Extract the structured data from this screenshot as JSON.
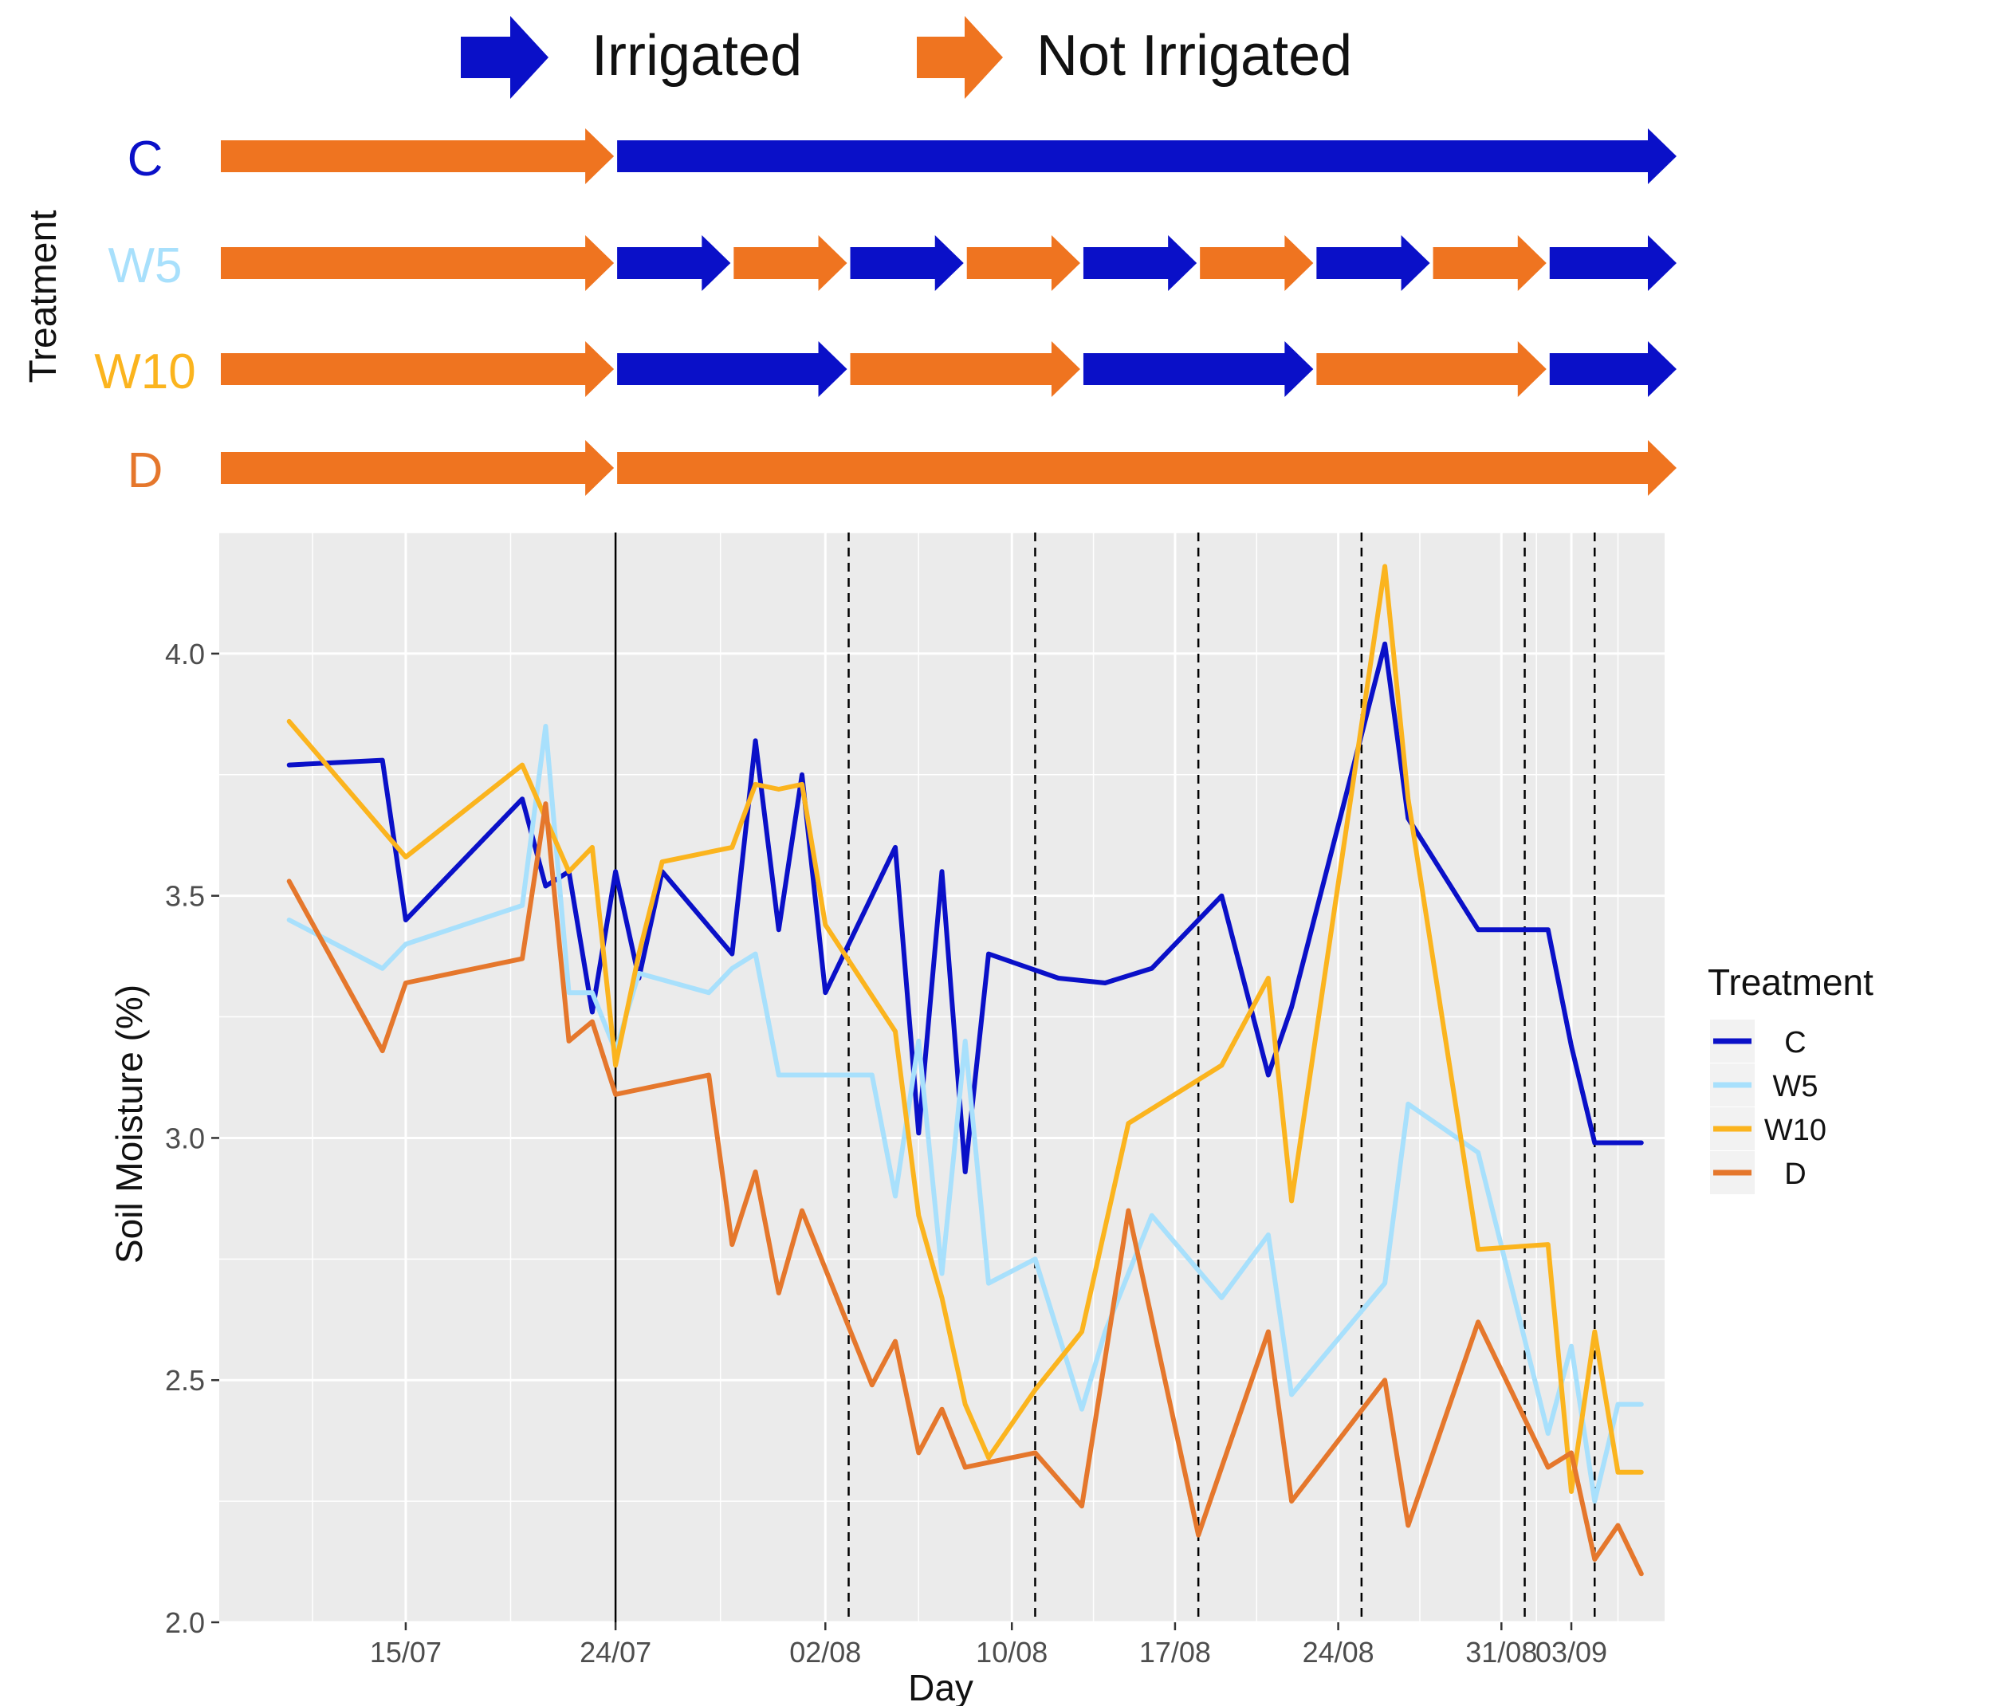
{
  "legend_top": {
    "irrigated_label": "Irrigated",
    "not_irrigated_label": "Not Irrigated"
  },
  "colors": {
    "irrigated": "#0a10c8",
    "not_irrigated": "#ef7420",
    "C": "#0a10c8",
    "W5": "#a8e0fc",
    "W10": "#fbb41e",
    "D": "#e5772c",
    "panel": "#ebebeb",
    "grid": "#ffffff"
  },
  "schedule": {
    "ylabel": "Treatment",
    "rows": [
      {
        "name": "C",
        "segments": [
          {
            "start": "2024-07-07",
            "end": "2024-07-24",
            "irrigated": false
          },
          {
            "start": "2024-07-24",
            "end": "2024-09-06",
            "irrigated": true
          }
        ]
      },
      {
        "name": "W5",
        "segments": [
          {
            "start": "2024-07-07",
            "end": "2024-07-24",
            "irrigated": false
          },
          {
            "start": "2024-07-24",
            "end": "2024-07-29",
            "irrigated": true
          },
          {
            "start": "2024-07-29",
            "end": "2024-08-03",
            "irrigated": false
          },
          {
            "start": "2024-08-03",
            "end": "2024-08-08",
            "irrigated": true
          },
          {
            "start": "2024-08-08",
            "end": "2024-08-13",
            "irrigated": false
          },
          {
            "start": "2024-08-13",
            "end": "2024-08-18",
            "irrigated": true
          },
          {
            "start": "2024-08-18",
            "end": "2024-08-23",
            "irrigated": false
          },
          {
            "start": "2024-08-23",
            "end": "2024-08-28",
            "irrigated": true
          },
          {
            "start": "2024-08-28",
            "end": "2024-09-02",
            "irrigated": false
          },
          {
            "start": "2024-09-02",
            "end": "2024-09-06",
            "irrigated": true
          }
        ]
      },
      {
        "name": "W10",
        "segments": [
          {
            "start": "2024-07-07",
            "end": "2024-07-24",
            "irrigated": false
          },
          {
            "start": "2024-07-24",
            "end": "2024-08-03",
            "irrigated": true
          },
          {
            "start": "2024-08-03",
            "end": "2024-08-13",
            "irrigated": false
          },
          {
            "start": "2024-08-13",
            "end": "2024-08-23",
            "irrigated": true
          },
          {
            "start": "2024-08-23",
            "end": "2024-09-02",
            "irrigated": false
          },
          {
            "start": "2024-09-02",
            "end": "2024-09-06",
            "irrigated": true
          }
        ]
      },
      {
        "name": "D",
        "segments": [
          {
            "start": "2024-07-07",
            "end": "2024-07-24",
            "irrigated": false
          },
          {
            "start": "2024-07-24",
            "end": "2024-09-06",
            "irrigated": false
          }
        ]
      }
    ]
  },
  "chart_data": {
    "type": "line",
    "xlabel": "Day",
    "ylabel": "Soil Moisture (%)",
    "xlim": [
      "2024-07-07",
      "2024-09-07"
    ],
    "ylim": [
      2.0,
      4.25
    ],
    "x_ticks": [
      {
        "date": "2024-07-15",
        "label": "15/07"
      },
      {
        "date": "2024-07-24",
        "label": "24/07"
      },
      {
        "date": "2024-08-02",
        "label": "02/08"
      },
      {
        "date": "2024-08-10",
        "label": "10/08"
      },
      {
        "date": "2024-08-17",
        "label": "17/08"
      },
      {
        "date": "2024-08-24",
        "label": "24/08"
      },
      {
        "date": "2024-08-31",
        "label": "31/08"
      },
      {
        "date": "2024-09-03",
        "label": "03/09"
      }
    ],
    "y_ticks": [
      {
        "value": 2.0,
        "label": "2.0"
      },
      {
        "value": 2.5,
        "label": "2.5"
      },
      {
        "value": 3.0,
        "label": "3.0"
      },
      {
        "value": 3.5,
        "label": "3.5"
      },
      {
        "value": 4.0,
        "label": "4.0"
      }
    ],
    "grid": true,
    "solid_vline": "2024-07-24",
    "dashed_vlines": [
      "2024-08-03",
      "2024-08-11",
      "2024-08-18",
      "2024-08-25",
      "2024-09-01",
      "2024-09-04"
    ],
    "legend": {
      "title": "Treatment",
      "position": "right"
    },
    "series": [
      {
        "name": "C",
        "x": [
          "2024-07-10",
          "2024-07-14",
          "2024-07-15",
          "2024-07-20",
          "2024-07-21",
          "2024-07-22",
          "2024-07-23",
          "2024-07-24",
          "2024-07-25",
          "2024-07-26",
          "2024-07-29",
          "2024-07-30",
          "2024-07-31",
          "2024-08-01",
          "2024-08-02",
          "2024-08-05",
          "2024-08-06",
          "2024-08-07",
          "2024-08-08",
          "2024-08-09",
          "2024-08-12",
          "2024-08-14",
          "2024-08-16",
          "2024-08-19",
          "2024-08-21",
          "2024-08-22",
          "2024-08-26",
          "2024-08-27",
          "2024-08-30",
          "2024-09-02",
          "2024-09-03",
          "2024-09-04",
          "2024-09-05",
          "2024-09-06"
        ],
        "y": [
          3.77,
          3.78,
          3.45,
          3.7,
          3.52,
          3.55,
          3.26,
          3.55,
          3.33,
          3.55,
          3.38,
          3.82,
          3.43,
          3.75,
          3.3,
          3.6,
          3.01,
          3.55,
          2.93,
          3.38,
          3.33,
          3.32,
          3.35,
          3.5,
          3.13,
          3.27,
          4.02,
          3.66,
          3.43,
          3.43,
          3.19,
          2.99,
          2.99,
          2.99
        ]
      },
      {
        "name": "W5",
        "x": [
          "2024-07-10",
          "2024-07-14",
          "2024-07-15",
          "2024-07-20",
          "2024-07-21",
          "2024-07-22",
          "2024-07-23",
          "2024-07-24",
          "2024-07-25",
          "2024-07-28",
          "2024-07-29",
          "2024-07-30",
          "2024-07-31",
          "2024-08-01",
          "2024-08-04",
          "2024-08-05",
          "2024-08-06",
          "2024-08-07",
          "2024-08-08",
          "2024-08-09",
          "2024-08-11",
          "2024-08-13",
          "2024-08-14",
          "2024-08-16",
          "2024-08-19",
          "2024-08-21",
          "2024-08-22",
          "2024-08-26",
          "2024-08-27",
          "2024-08-30",
          "2024-09-02",
          "2024-09-03",
          "2024-09-04",
          "2024-09-05",
          "2024-09-06"
        ],
        "y": [
          3.45,
          3.35,
          3.4,
          3.48,
          3.85,
          3.3,
          3.3,
          3.18,
          3.34,
          3.3,
          3.35,
          3.38,
          3.13,
          3.13,
          3.13,
          2.88,
          3.2,
          2.72,
          3.2,
          2.7,
          2.75,
          2.44,
          2.6,
          2.84,
          2.67,
          2.8,
          2.47,
          2.7,
          3.07,
          2.97,
          2.39,
          2.57,
          2.25,
          2.45,
          2.45
        ]
      },
      {
        "name": "W10",
        "x": [
          "2024-07-10",
          "2024-07-15",
          "2024-07-20",
          "2024-07-22",
          "2024-07-23",
          "2024-07-24",
          "2024-07-25",
          "2024-07-26",
          "2024-07-29",
          "2024-07-30",
          "2024-07-31",
          "2024-08-01",
          "2024-08-02",
          "2024-08-05",
          "2024-08-06",
          "2024-08-07",
          "2024-08-08",
          "2024-08-09",
          "2024-08-11",
          "2024-08-13",
          "2024-08-15",
          "2024-08-19",
          "2024-08-21",
          "2024-08-22",
          "2024-08-26",
          "2024-08-27",
          "2024-08-30",
          "2024-09-02",
          "2024-09-03",
          "2024-09-04",
          "2024-09-05",
          "2024-09-06"
        ],
        "y": [
          3.86,
          3.58,
          3.77,
          3.55,
          3.6,
          3.15,
          3.38,
          3.57,
          3.6,
          3.73,
          3.72,
          3.73,
          3.44,
          3.22,
          2.84,
          2.67,
          2.45,
          2.34,
          2.48,
          2.6,
          3.03,
          3.15,
          3.33,
          2.87,
          4.18,
          3.7,
          2.77,
          2.78,
          2.27,
          2.6,
          2.31,
          2.31
        ]
      },
      {
        "name": "D",
        "x": [
          "2024-07-10",
          "2024-07-14",
          "2024-07-15",
          "2024-07-20",
          "2024-07-21",
          "2024-07-22",
          "2024-07-23",
          "2024-07-24",
          "2024-07-28",
          "2024-07-29",
          "2024-07-30",
          "2024-07-31",
          "2024-08-01",
          "2024-08-04",
          "2024-08-05",
          "2024-08-06",
          "2024-08-07",
          "2024-08-08",
          "2024-08-11",
          "2024-08-13",
          "2024-08-15",
          "2024-08-18",
          "2024-08-21",
          "2024-08-22",
          "2024-08-26",
          "2024-08-27",
          "2024-08-30",
          "2024-09-02",
          "2024-09-03",
          "2024-09-04",
          "2024-09-05",
          "2024-09-06"
        ],
        "y": [
          3.53,
          3.18,
          3.32,
          3.37,
          3.69,
          3.2,
          3.24,
          3.09,
          3.13,
          2.78,
          2.93,
          2.68,
          2.85,
          2.49,
          2.58,
          2.35,
          2.44,
          2.32,
          2.35,
          2.24,
          2.85,
          2.18,
          2.6,
          2.25,
          2.5,
          2.2,
          2.62,
          2.32,
          2.35,
          2.13,
          2.2,
          2.1
        ]
      }
    ]
  }
}
